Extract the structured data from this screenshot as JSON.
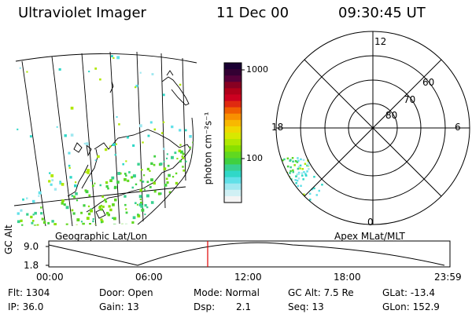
{
  "header": {
    "instrument": "Ultraviolet Imager",
    "date": "11 Dec 00",
    "time": "09:30:45 UT"
  },
  "colorbar": {
    "label": "photon cm⁻²s⁻¹",
    "ticks": [
      "1000",
      "100"
    ],
    "colors": [
      "#1a0033",
      "#330033",
      "#55003a",
      "#880022",
      "#b0001a",
      "#cc0020",
      "#e02a10",
      "#f06000",
      "#f89000",
      "#f8b800",
      "#f0d800",
      "#d8e800",
      "#b0e800",
      "#88e000",
      "#60d820",
      "#40d040",
      "#38d090",
      "#30d8c8",
      "#60e0e8",
      "#a0e8f0",
      "#d0f0f4",
      "#f4f4f4"
    ]
  },
  "maps": {
    "left_label": "Geographic Lat/Lon",
    "right_label": "Apex MLat/MLT",
    "polar_mlt": [
      "12",
      "18",
      "6",
      "0"
    ],
    "polar_lat": [
      "60",
      "70",
      "80"
    ]
  },
  "altitude_plot": {
    "ylabel": "GC Alt",
    "yticks": [
      "9.0",
      "1.8"
    ],
    "xticks": [
      "00:00",
      "06:00",
      "12:00",
      "18:00",
      "23:59"
    ],
    "marker_time_fraction": 0.396
  },
  "info": {
    "flt": "Flt: 1304",
    "ip": "IP: 36.0",
    "door": "Door: Open",
    "gain": "Gain: 13",
    "mode": "Mode: Normal",
    "dsp_label": "Dsp:",
    "dsp_value": "2.1",
    "gc_alt": "GC Alt: 7.5 Re",
    "seq": "Seq: 13",
    "glat": "GLat: -13.4",
    "glon": "GLon: 152.9"
  }
}
